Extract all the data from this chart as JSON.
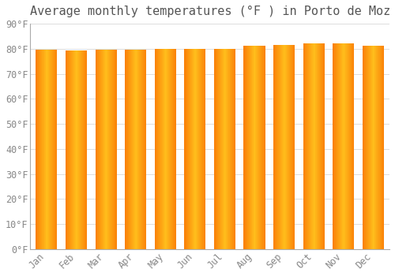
{
  "title": "Average monthly temperatures (°F ) in Porto de Moz",
  "months": [
    "Jan",
    "Feb",
    "Mar",
    "Apr",
    "May",
    "Jun",
    "Jul",
    "Aug",
    "Sep",
    "Oct",
    "Nov",
    "Dec"
  ],
  "values": [
    79.7,
    79.3,
    79.7,
    79.7,
    80.1,
    80.1,
    80.1,
    81.3,
    81.5,
    82.2,
    82.2,
    81.3
  ],
  "ylim": [
    0,
    90
  ],
  "ytick_step": 10,
  "background_color": "#ffffff",
  "grid_color": "#dddddd",
  "title_fontsize": 11,
  "tick_fontsize": 8.5,
  "bar_color_center": "#FFB81C",
  "bar_color_edge": "#F07800",
  "bar_width": 0.72
}
